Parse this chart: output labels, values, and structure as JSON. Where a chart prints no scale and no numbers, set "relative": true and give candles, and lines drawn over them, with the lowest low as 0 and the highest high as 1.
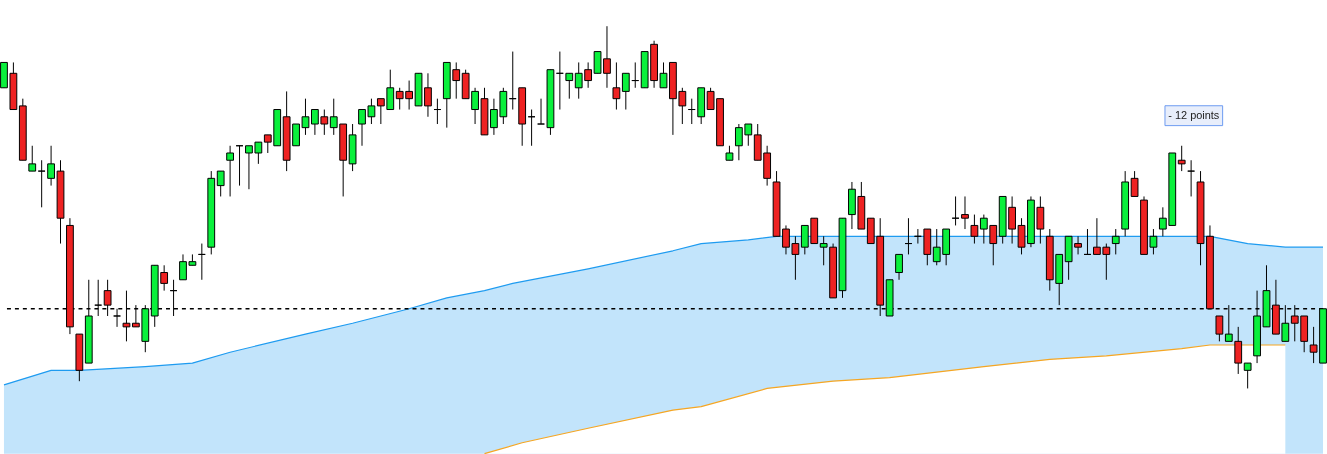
{
  "chart_data": {
    "type": "candlestick",
    "relative": true,
    "categories": [
      null,
      null,
      null,
      null,
      null,
      null,
      null,
      null,
      null,
      null,
      null,
      null,
      null,
      null,
      null,
      null,
      null,
      null,
      null,
      null,
      null,
      null,
      null,
      null,
      null,
      null,
      null,
      null,
      null,
      null,
      null,
      null,
      null,
      null,
      null,
      null,
      null,
      null,
      null,
      null,
      null,
      null,
      null,
      null,
      null,
      null,
      null,
      null,
      null,
      null,
      null,
      null,
      null,
      null,
      null,
      null,
      null,
      null,
      null,
      null,
      null,
      null,
      null,
      null,
      null,
      null,
      null,
      null,
      null,
      null,
      null,
      null,
      null,
      null,
      null,
      null,
      null,
      null,
      null,
      null,
      null,
      null,
      null,
      null,
      null,
      null,
      null,
      null,
      null,
      null,
      null,
      null,
      null,
      null,
      null,
      null,
      null,
      null,
      null,
      null,
      null,
      null,
      null,
      null,
      null,
      null,
      null,
      null,
      null,
      null,
      null,
      null,
      null,
      null,
      null,
      null,
      null,
      null,
      null,
      null,
      null,
      null,
      null,
      null,
      null,
      null,
      null,
      null,
      null,
      null,
      null,
      null,
      null,
      null,
      null,
      null,
      null,
      null,
      null,
      null,
      null
    ],
    "ohlc": [
      [
        0.83,
        0.9,
        0.83,
        0.9
      ],
      [
        0.87,
        0.9,
        0.77,
        0.77
      ],
      [
        0.78,
        0.8,
        0.63,
        0.63
      ],
      [
        0.6,
        0.67,
        0.6,
        0.62
      ],
      [
        0.6,
        0.63,
        0.5,
        0.6
      ],
      [
        0.58,
        0.67,
        0.56,
        0.62
      ],
      [
        0.6,
        0.63,
        0.4,
        0.47
      ],
      [
        0.45,
        0.47,
        0.15,
        0.17
      ],
      [
        0.15,
        0.15,
        0.02,
        0.05
      ],
      [
        0.07,
        0.3,
        0.07,
        0.2
      ],
      [
        0.23,
        0.3,
        0.2,
        0.23
      ],
      [
        0.27,
        0.3,
        0.2,
        0.23
      ],
      [
        0.2,
        0.22,
        0.17,
        0.2
      ],
      [
        0.18,
        0.27,
        0.13,
        0.17
      ],
      [
        0.18,
        0.23,
        0.17,
        0.17
      ],
      [
        0.13,
        0.23,
        0.1,
        0.22
      ],
      [
        0.2,
        0.34,
        0.17,
        0.34
      ],
      [
        0.32,
        0.34,
        0.27,
        0.29
      ],
      [
        0.27,
        0.3,
        0.2,
        0.27
      ],
      [
        0.3,
        0.37,
        0.3,
        0.35
      ],
      [
        0.34,
        0.37,
        0.34,
        0.35
      ],
      [
        0.37,
        0.4,
        0.3,
        0.37
      ],
      [
        0.39,
        0.6,
        0.37,
        0.58
      ],
      [
        0.56,
        0.6,
        0.53,
        0.6
      ],
      [
        0.63,
        0.67,
        0.53,
        0.65
      ],
      [
        0.67,
        0.67,
        0.56,
        0.67
      ],
      [
        0.65,
        0.67,
        0.55,
        0.67
      ],
      [
        0.65,
        0.68,
        0.62,
        0.68
      ],
      [
        0.7,
        0.7,
        0.65,
        0.68
      ],
      [
        0.67,
        0.77,
        0.67,
        0.77
      ],
      [
        0.75,
        0.82,
        0.6,
        0.63
      ],
      [
        0.67,
        0.73,
        0.67,
        0.73
      ],
      [
        0.72,
        0.8,
        0.7,
        0.75
      ],
      [
        0.73,
        0.77,
        0.7,
        0.77
      ],
      [
        0.75,
        0.77,
        0.7,
        0.73
      ],
      [
        0.72,
        0.8,
        0.7,
        0.75
      ],
      [
        0.73,
        0.73,
        0.53,
        0.63
      ],
      [
        0.62,
        0.73,
        0.6,
        0.7
      ],
      [
        0.73,
        0.77,
        0.67,
        0.77
      ],
      [
        0.75,
        0.8,
        0.73,
        0.78
      ],
      [
        0.8,
        0.8,
        0.73,
        0.78
      ],
      [
        0.77,
        0.88,
        0.77,
        0.83
      ],
      [
        0.82,
        0.83,
        0.77,
        0.8
      ],
      [
        0.82,
        0.85,
        0.77,
        0.8
      ],
      [
        0.78,
        0.87,
        0.78,
        0.87
      ],
      [
        0.83,
        0.87,
        0.75,
        0.78
      ],
      [
        0.77,
        0.8,
        0.73,
        0.77
      ],
      [
        0.8,
        0.9,
        0.72,
        0.9
      ],
      [
        0.88,
        0.9,
        0.8,
        0.85
      ],
      [
        0.87,
        0.88,
        0.8,
        0.8
      ],
      [
        0.77,
        0.83,
        0.73,
        0.82
      ],
      [
        0.8,
        0.83,
        0.7,
        0.7
      ],
      [
        0.72,
        0.8,
        0.7,
        0.77
      ],
      [
        0.75,
        0.83,
        0.73,
        0.82
      ],
      [
        0.8,
        0.93,
        0.77,
        0.8
      ],
      [
        0.83,
        0.83,
        0.67,
        0.73
      ],
      [
        0.75,
        0.77,
        0.67,
        0.75
      ],
      [
        0.73,
        0.8,
        0.73,
        0.73
      ],
      [
        0.72,
        0.88,
        0.7,
        0.88
      ],
      [
        0.87,
        0.93,
        0.77,
        0.87
      ],
      [
        0.85,
        0.87,
        0.8,
        0.87
      ],
      [
        0.83,
        0.9,
        0.8,
        0.87
      ],
      [
        0.88,
        0.9,
        0.83,
        0.85
      ],
      [
        0.87,
        0.93,
        0.87,
        0.93
      ],
      [
        0.91,
        1.0,
        0.83,
        0.87
      ],
      [
        0.83,
        0.9,
        0.77,
        0.8
      ],
      [
        0.82,
        0.87,
        0.77,
        0.87
      ],
      [
        0.85,
        0.9,
        0.83,
        0.85
      ],
      [
        0.83,
        0.93,
        0.83,
        0.93
      ],
      [
        0.95,
        0.96,
        0.83,
        0.85
      ],
      [
        0.83,
        0.9,
        0.83,
        0.87
      ],
      [
        0.9,
        0.9,
        0.7,
        0.8
      ],
      [
        0.82,
        0.83,
        0.73,
        0.78
      ],
      [
        0.77,
        0.8,
        0.73,
        0.77
      ],
      [
        0.75,
        0.83,
        0.73,
        0.83
      ],
      [
        0.82,
        0.83,
        0.77,
        0.77
      ],
      [
        0.8,
        0.8,
        0.67,
        0.67
      ],
      [
        0.63,
        0.67,
        0.63,
        0.65
      ],
      [
        0.67,
        0.73,
        0.63,
        0.72
      ],
      [
        0.7,
        0.73,
        0.67,
        0.73
      ],
      [
        0.7,
        0.73,
        0.63,
        0.63
      ],
      [
        0.65,
        0.67,
        0.56,
        0.58
      ],
      [
        0.57,
        0.6,
        0.42,
        0.42
      ],
      [
        0.44,
        0.45,
        0.37,
        0.39
      ],
      [
        0.4,
        0.42,
        0.3,
        0.37
      ],
      [
        0.39,
        0.45,
        0.37,
        0.45
      ],
      [
        0.47,
        0.47,
        0.4,
        0.4
      ],
      [
        0.39,
        0.42,
        0.34,
        0.4
      ],
      [
        0.39,
        0.4,
        0.25,
        0.25
      ],
      [
        0.27,
        0.47,
        0.25,
        0.47
      ],
      [
        0.48,
        0.57,
        0.44,
        0.55
      ],
      [
        0.53,
        0.57,
        0.44,
        0.44
      ],
      [
        0.47,
        0.47,
        0.4,
        0.4
      ],
      [
        0.42,
        0.47,
        0.2,
        0.23
      ],
      [
        0.2,
        0.3,
        0.2,
        0.3
      ],
      [
        0.32,
        0.37,
        0.3,
        0.37
      ],
      [
        0.4,
        0.47,
        0.37,
        0.4
      ],
      [
        0.42,
        0.44,
        0.4,
        0.42
      ],
      [
        0.44,
        0.44,
        0.34,
        0.37
      ],
      [
        0.35,
        0.44,
        0.34,
        0.39
      ],
      [
        0.37,
        0.44,
        0.34,
        0.44
      ],
      [
        0.47,
        0.53,
        0.45,
        0.47
      ],
      [
        0.48,
        0.53,
        0.44,
        0.47
      ],
      [
        0.45,
        0.48,
        0.4,
        0.42
      ],
      [
        0.44,
        0.48,
        0.4,
        0.47
      ],
      [
        0.45,
        0.45,
        0.34,
        0.4
      ],
      [
        0.42,
        0.53,
        0.4,
        0.53
      ],
      [
        0.5,
        0.53,
        0.4,
        0.44
      ],
      [
        0.45,
        0.47,
        0.37,
        0.39
      ],
      [
        0.4,
        0.53,
        0.39,
        0.52
      ],
      [
        0.5,
        0.53,
        0.4,
        0.44
      ],
      [
        0.42,
        0.44,
        0.27,
        0.3
      ],
      [
        0.29,
        0.37,
        0.23,
        0.37
      ],
      [
        0.35,
        0.42,
        0.3,
        0.42
      ],
      [
        0.4,
        0.42,
        0.37,
        0.39
      ],
      [
        0.37,
        0.44,
        0.37,
        0.37
      ],
      [
        0.39,
        0.47,
        0.37,
        0.37
      ],
      [
        0.39,
        0.4,
        0.3,
        0.37
      ],
      [
        0.4,
        0.44,
        0.37,
        0.42
      ],
      [
        0.44,
        0.6,
        0.42,
        0.57
      ],
      [
        0.58,
        0.6,
        0.53,
        0.53
      ],
      [
        0.52,
        0.53,
        0.37,
        0.37
      ],
      [
        0.39,
        0.44,
        0.37,
        0.42
      ],
      [
        0.44,
        0.5,
        0.42,
        0.47
      ],
      [
        0.45,
        0.65,
        0.45,
        0.65
      ],
      [
        0.63,
        0.67,
        0.6,
        0.62
      ],
      [
        0.6,
        0.63,
        0.53,
        0.6
      ],
      [
        0.57,
        0.6,
        0.34,
        0.4
      ],
      [
        0.42,
        0.45,
        0.22,
        0.22
      ],
      [
        0.2,
        0.2,
        0.13,
        0.15
      ],
      [
        0.13,
        0.23,
        0.13,
        0.15
      ],
      [
        0.13,
        0.17,
        0.04,
        0.07
      ],
      [
        0.05,
        0.07,
        0.0,
        0.07
      ],
      [
        0.09,
        0.27,
        0.07,
        0.2
      ],
      [
        0.17,
        0.34,
        0.17,
        0.27
      ],
      [
        0.23,
        0.3,
        0.15,
        0.15
      ],
      [
        0.13,
        0.23,
        0.13,
        0.18
      ],
      [
        0.2,
        0.23,
        0.13,
        0.18
      ],
      [
        0.2,
        0.2,
        0.1,
        0.13
      ],
      [
        0.12,
        0.17,
        0.07,
        0.1
      ],
      [
        0.07,
        0.22,
        0.07,
        0.22
      ]
    ],
    "colors": [
      "#0af03c",
      "#ee2222",
      "#ee2222",
      "#0af03c",
      "#000000",
      "#0af03c",
      "#ee2222",
      "#ee2222",
      "#ee2222",
      "#0af03c",
      "#000000",
      "#ee2222",
      "#000000",
      "#ee2222",
      "#ee2222",
      "#0af03c",
      "#0af03c",
      "#ee2222",
      "#000000",
      "#0af03c",
      "#0af03c",
      "#000000",
      "#0af03c",
      "#0af03c",
      "#0af03c",
      "#000000",
      "#0af03c",
      "#0af03c",
      "#ee2222",
      "#0af03c",
      "#ee2222",
      "#0af03c",
      "#0af03c",
      "#0af03c",
      "#ee2222",
      "#0af03c",
      "#ee2222",
      "#0af03c",
      "#0af03c",
      "#0af03c",
      "#ee2222",
      "#0af03c",
      "#ee2222",
      "#ee2222",
      "#0af03c",
      "#ee2222",
      "#000000",
      "#0af03c",
      "#ee2222",
      "#ee2222",
      "#0af03c",
      "#ee2222",
      "#0af03c",
      "#0af03c",
      "#000000",
      "#ee2222",
      "#000000",
      "#000000",
      "#0af03c",
      "#000000",
      "#0af03c",
      "#0af03c",
      "#ee2222",
      "#0af03c",
      "#ee2222",
      "#ee2222",
      "#0af03c",
      "#000000",
      "#0af03c",
      "#ee2222",
      "#0af03c",
      "#ee2222",
      "#ee2222",
      "#000000",
      "#0af03c",
      "#ee2222",
      "#ee2222",
      "#0af03c",
      "#0af03c",
      "#0af03c",
      "#ee2222",
      "#ee2222",
      "#ee2222",
      "#ee2222",
      "#ee2222",
      "#0af03c",
      "#ee2222",
      "#0af03c",
      "#ee2222",
      "#0af03c",
      "#0af03c",
      "#ee2222",
      "#ee2222",
      "#ee2222",
      "#0af03c",
      "#0af03c",
      "#000000",
      "#000000",
      "#ee2222",
      "#0af03c",
      "#0af03c",
      "#000000",
      "#ee2222",
      "#ee2222",
      "#0af03c",
      "#ee2222",
      "#0af03c",
      "#ee2222",
      "#ee2222",
      "#0af03c",
      "#ee2222",
      "#ee2222",
      "#0af03c",
      "#0af03c",
      "#ee2222",
      "#000000",
      "#ee2222",
      "#ee2222",
      "#0af03c",
      "#0af03c",
      "#ee2222",
      "#ee2222",
      "#0af03c",
      "#0af03c",
      "#0af03c",
      "#ee2222",
      "#000000",
      "#ee2222",
      "#ee2222",
      "#ee2222",
      "#0af03c",
      "#ee2222",
      "#0af03c",
      "#0af03c",
      "#0af03c",
      "#ee2222",
      "#0af03c",
      "#ee2222",
      "#ee2222",
      "#ee2222",
      "#0af03c"
    ],
    "series": [
      {
        "type": "area",
        "color": "#1e9bf0",
        "values": [
          0.01,
          null,
          null,
          null,
          null,
          0.05,
          null,
          null,
          0.05,
          null,
          null,
          null,
          null,
          null,
          null,
          0.06,
          null,
          null,
          null,
          null,
          0.07,
          null,
          null,
          null,
          0.1,
          null,
          null,
          null,
          null,
          null,
          null,
          null,
          0.15,
          null,
          null,
          null,
          null,
          0.18,
          null,
          null,
          null,
          null,
          null,
          0.22,
          null,
          null,
          null,
          0.25,
          null,
          null,
          null,
          0.27,
          null,
          null,
          0.29,
          null,
          null,
          null,
          null,
          null,
          null,
          null,
          0.33,
          null,
          null,
          null,
          null,
          null,
          null,
          null,
          null,
          0.38,
          null,
          null,
          0.4,
          null,
          null,
          null,
          null,
          0.41,
          null,
          null,
          0.42,
          null,
          null,
          null,
          null,
          null,
          null,
          null,
          0.42,
          null,
          null,
          null,
          null,
          null,
          null,
          null,
          null,
          null,
          null,
          null,
          null,
          null,
          null,
          null,
          0.42,
          null,
          null,
          null,
          null,
          null,
          null,
          null,
          null,
          null,
          null,
          0.42,
          null,
          null,
          null,
          null,
          null,
          null,
          null,
          null,
          null,
          null,
          0.42,
          null,
          null,
          null,
          0.4,
          null,
          null,
          null,
          0.39,
          null,
          null,
          null,
          0.39
        ]
      },
      {
        "type": "area",
        "color": "#f5a623",
        "values": [
          null,
          null,
          null,
          null,
          null,
          null,
          null,
          null,
          null,
          null,
          null,
          null,
          null,
          null,
          null,
          null,
          null,
          null,
          null,
          null,
          null,
          null,
          null,
          null,
          null,
          null,
          null,
          null,
          null,
          null,
          null,
          null,
          null,
          null,
          null,
          null,
          null,
          null,
          null,
          null,
          null,
          null,
          null,
          null,
          null,
          null,
          null,
          null,
          null,
          null,
          null,
          -0.18,
          null,
          null,
          null,
          -0.15,
          null,
          null,
          null,
          null,
          null,
          null,
          -0.11,
          null,
          null,
          null,
          null,
          null,
          null,
          null,
          null,
          -0.06,
          null,
          null,
          -0.05,
          null,
          null,
          null,
          null,
          null,
          null,
          0.0,
          null,
          null,
          null,
          null,
          null,
          null,
          0.02,
          null,
          null,
          null,
          null,
          null,
          0.03,
          null,
          null,
          null,
          null,
          null,
          null,
          null,
          null,
          null,
          0.06,
          null,
          null,
          null,
          null,
          null,
          null,
          0.08,
          null,
          null,
          null,
          null,
          null,
          0.09,
          null,
          null,
          null,
          null,
          null,
          null,
          null,
          0.11,
          null,
          null,
          0.12,
          null,
          null,
          null,
          null,
          null,
          null,
          null,
          0.12,
          null,
          null,
          null,
          null
        ]
      }
    ],
    "ref_lines": [
      {
        "axis": "y",
        "value": 0.22,
        "color": "#000000",
        "line_style": "dashed"
      }
    ],
    "annotations": [
      "- 12 points"
    ]
  }
}
